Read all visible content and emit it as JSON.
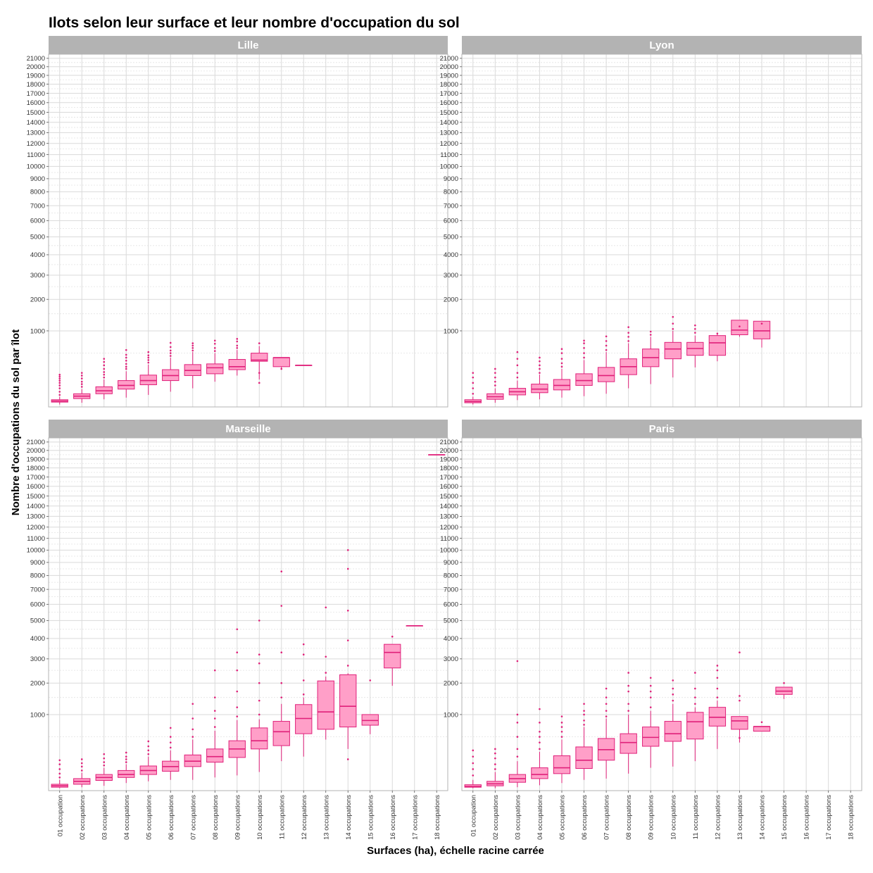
{
  "chart_data": {
    "type": "boxplot",
    "title": "Ilots selon leur surface et leur nombre d'occupation du sol",
    "xlabel": "Surfaces (ha), échelle racine carrée",
    "ylabel": "Nombre d'occupations du sol par îlot",
    "y_scale": "sqrt",
    "ylim": [
      0,
      21500
    ],
    "y_ticks": [
      1000,
      2000,
      3000,
      4000,
      5000,
      6000,
      7000,
      8000,
      9000,
      10000,
      11000,
      12000,
      13000,
      14000,
      15000,
      16000,
      17000,
      18000,
      19000,
      20000,
      21000
    ],
    "grid": true,
    "categories": [
      "01 occupation",
      "02 occupations",
      "03 occupations",
      "04 occupations",
      "05 occupations",
      "06 occupations",
      "07 occupations",
      "08 occupations",
      "09 occupations",
      "10 occupations",
      "11 occupations",
      "12 occupations",
      "13 occupations",
      "14 occupations",
      "15 occupations",
      "16 occupations",
      "17 occupations",
      "18 occupations"
    ],
    "box_fill": "#ff9fc8",
    "box_stroke": "#e0207a",
    "facets": [
      {
        "name": "Lille",
        "boxes": [
          {
            "cat": 0,
            "q1": 4,
            "med": 6,
            "q3": 9,
            "wlo": 1,
            "whi": 18,
            "outliers": [
              25,
              40,
              60,
              80,
              100,
              120,
              140,
              160,
              180
            ]
          },
          {
            "cat": 1,
            "q1": 12,
            "med": 20,
            "q3": 30,
            "wlo": 3,
            "whi": 55,
            "outliers": [
              70,
              90,
              110,
              140,
              170,
              200
            ]
          },
          {
            "cat": 2,
            "q1": 30,
            "med": 45,
            "q3": 70,
            "wlo": 10,
            "whi": 130,
            "outliers": [
              150,
              180,
              210,
              250,
              300,
              350,
              400
            ]
          },
          {
            "cat": 3,
            "q1": 55,
            "med": 80,
            "q3": 120,
            "wlo": 15,
            "whi": 220,
            "outliers": [
              250,
              280,
              320,
              370,
              420,
              470,
              560
            ]
          },
          {
            "cat": 4,
            "q1": 85,
            "med": 120,
            "q3": 175,
            "wlo": 25,
            "whi": 310,
            "outliers": [
              340,
              380,
              420,
              460,
              520
            ]
          },
          {
            "cat": 5,
            "q1": 120,
            "med": 170,
            "q3": 240,
            "wlo": 40,
            "whi": 420,
            "outliers": [
              450,
              500,
              550,
              620,
              710
            ]
          },
          {
            "cat": 6,
            "q1": 170,
            "med": 230,
            "q3": 310,
            "wlo": 60,
            "whi": 520,
            "outliers": [
              550,
              600,
              650,
              700
            ]
          },
          {
            "cat": 7,
            "q1": 190,
            "med": 265,
            "q3": 320,
            "wlo": 110,
            "whi": 500,
            "outliers": [
              540,
              600,
              690,
              760
            ]
          },
          {
            "cat": 8,
            "q1": 240,
            "med": 280,
            "q3": 390,
            "wlo": 170,
            "whi": 560,
            "outliers": [
              600,
              650,
              740,
              800
            ]
          },
          {
            "cat": 9,
            "q1": 360,
            "med": 380,
            "q3": 500,
            "wlo": 130,
            "whi": 640,
            "outliers": [
              100,
              200,
              700
            ]
          },
          {
            "cat": 10,
            "q1": 280,
            "med": 420,
            "q3": 420,
            "wlo": 240,
            "whi": 420,
            "outliers": [
              250
            ]
          },
          {
            "cat": 11,
            "q1": 300,
            "med": 300,
            "q3": 300,
            "wlo": 300,
            "whi": 300,
            "outliers": []
          }
        ]
      },
      {
        "name": "Lyon",
        "boxes": [
          {
            "cat": 0,
            "q1": 3,
            "med": 5,
            "q3": 9,
            "wlo": 1,
            "whi": 18,
            "outliers": [
              30,
              60,
              100,
              150,
              200
            ]
          },
          {
            "cat": 1,
            "q1": 10,
            "med": 18,
            "q3": 30,
            "wlo": 3,
            "whi": 60,
            "outliers": [
              80,
              110,
              150,
              200,
              250
            ]
          },
          {
            "cat": 2,
            "q1": 25,
            "med": 40,
            "q3": 60,
            "wlo": 8,
            "whi": 120,
            "outliers": [
              150,
              200,
              300,
              400,
              520
            ]
          },
          {
            "cat": 3,
            "q1": 35,
            "med": 55,
            "q3": 90,
            "wlo": 10,
            "whi": 180,
            "outliers": [
              200,
              250,
              300,
              360,
              420
            ]
          },
          {
            "cat": 4,
            "q1": 50,
            "med": 80,
            "q3": 130,
            "wlo": 15,
            "whi": 250,
            "outliers": [
              280,
              330,
              400,
              500,
              580
            ]
          },
          {
            "cat": 5,
            "q1": 80,
            "med": 120,
            "q3": 190,
            "wlo": 20,
            "whi": 380,
            "outliers": [
              420,
              500,
              600,
              700,
              760
            ]
          },
          {
            "cat": 6,
            "q1": 110,
            "med": 170,
            "q3": 270,
            "wlo": 30,
            "whi": 520,
            "outliers": [
              560,
              650,
              750,
              860
            ]
          },
          {
            "cat": 7,
            "q1": 180,
            "med": 280,
            "q3": 400,
            "wlo": 60,
            "whi": 700,
            "outliers": [
              750,
              850,
              950,
              1100
            ]
          },
          {
            "cat": 8,
            "q1": 280,
            "med": 420,
            "q3": 580,
            "wlo": 90,
            "whi": 850,
            "outliers": [
              900,
              980
            ]
          },
          {
            "cat": 9,
            "q1": 400,
            "med": 580,
            "q3": 720,
            "wlo": 150,
            "whi": 1000,
            "outliers": [
              1050,
              1200,
              1400
            ]
          },
          {
            "cat": 10,
            "q1": 460,
            "med": 590,
            "q3": 720,
            "wlo": 270,
            "whi": 880,
            "outliers": [
              950,
              1050,
              1150
            ]
          },
          {
            "cat": 11,
            "q1": 460,
            "med": 710,
            "q3": 880,
            "wlo": 360,
            "whi": 910,
            "outliers": [
              930
            ]
          },
          {
            "cat": 12,
            "q1": 900,
            "med": 1020,
            "q3": 1300,
            "wlo": 850,
            "whi": 1080,
            "outliers": [
              1120
            ]
          },
          {
            "cat": 13,
            "q1": 800,
            "med": 1000,
            "q3": 1270,
            "wlo": 610,
            "whi": 1150,
            "outliers": [
              1200
            ]
          }
        ]
      },
      {
        "name": "Marseille",
        "boxes": [
          {
            "cat": 0,
            "q1": 2,
            "med": 4,
            "q3": 7,
            "wlo": 1,
            "whi": 20,
            "outliers": [
              30,
              50,
              80,
              120,
              160
            ]
          },
          {
            "cat": 1,
            "q1": 7,
            "med": 15,
            "q3": 25,
            "wlo": 2,
            "whi": 55,
            "outliers": [
              70,
              100,
              130,
              170
            ]
          },
          {
            "cat": 2,
            "q1": 18,
            "med": 30,
            "q3": 45,
            "wlo": 4,
            "whi": 90,
            "outliers": [
              110,
              140,
              180,
              230
            ]
          },
          {
            "cat": 3,
            "q1": 30,
            "med": 45,
            "q3": 70,
            "wlo": 10,
            "whi": 120,
            "outliers": [
              140,
              170,
              200,
              250
            ]
          },
          {
            "cat": 4,
            "q1": 45,
            "med": 70,
            "q3": 105,
            "wlo": 15,
            "whi": 200,
            "outliers": [
              230,
              280,
              340,
              420
            ]
          },
          {
            "cat": 5,
            "q1": 65,
            "med": 100,
            "q3": 150,
            "wlo": 20,
            "whi": 280,
            "outliers": [
              320,
              400,
              500,
              680
            ]
          },
          {
            "cat": 6,
            "q1": 100,
            "med": 150,
            "q3": 220,
            "wlo": 20,
            "whi": 450,
            "outliers": [
              500,
              650,
              900,
              1300
            ]
          },
          {
            "cat": 7,
            "q1": 140,
            "med": 200,
            "q3": 300,
            "wlo": 30,
            "whi": 620,
            "outliers": [
              700,
              900,
              1100,
              1500,
              2500
            ]
          },
          {
            "cat": 8,
            "q1": 190,
            "med": 300,
            "q3": 430,
            "wlo": 40,
            "whi": 860,
            "outliers": [
              950,
              1200,
              1700,
              2500,
              3300,
              4500
            ]
          },
          {
            "cat": 9,
            "q1": 300,
            "med": 430,
            "q3": 680,
            "wlo": 60,
            "whi": 880,
            "outliers": [
              1000,
              1400,
              2000,
              2800,
              3200,
              5000
            ]
          },
          {
            "cat": 10,
            "q1": 350,
            "med": 600,
            "q3": 830,
            "wlo": 150,
            "whi": 1300,
            "outliers": [
              1500,
              2000,
              3300,
              5900,
              8300
            ]
          },
          {
            "cat": 11,
            "q1": 560,
            "med": 900,
            "q3": 1280,
            "wlo": 200,
            "whi": 1500,
            "outliers": [
              1600,
              2100,
              3200,
              3700
            ]
          },
          {
            "cat": 12,
            "q1": 650,
            "med": 1070,
            "q3": 2080,
            "wlo": 450,
            "whi": 2250,
            "outliers": [
              2400,
              3100,
              5800
            ]
          },
          {
            "cat": 13,
            "q1": 700,
            "med": 1230,
            "q3": 2320,
            "wlo": 300,
            "whi": 2380,
            "outliers": [
              170,
              2700,
              3900,
              5600,
              8500,
              10000
            ]
          },
          {
            "cat": 14,
            "q1": 740,
            "med": 850,
            "q3": 1000,
            "wlo": 550,
            "whi": 1000,
            "outliers": [
              2100
            ]
          },
          {
            "cat": 15,
            "q1": 2600,
            "med": 3300,
            "q3": 3700,
            "wlo": 1900,
            "whi": 3700,
            "outliers": [
              4100
            ]
          },
          {
            "cat": 16,
            "q1": 4700,
            "med": 4700,
            "q3": 4700,
            "wlo": 4700,
            "whi": 4700,
            "outliers": []
          },
          {
            "cat": 17,
            "q1": 19500,
            "med": 19500,
            "q3": 19500,
            "wlo": 19500,
            "whi": 19500,
            "outliers": []
          }
        ]
      },
      {
        "name": "Paris",
        "boxes": [
          {
            "cat": 0,
            "q1": 2,
            "med": 3,
            "q3": 6,
            "wlo": 1,
            "whi": 20,
            "outliers": [
              40,
              80,
              130,
              200,
              280
            ]
          },
          {
            "cat": 1,
            "q1": 4,
            "med": 8,
            "q3": 15,
            "wlo": 1,
            "whi": 60,
            "outliers": [
              80,
              120,
              180,
              240,
              300
            ]
          },
          {
            "cat": 2,
            "q1": 12,
            "med": 25,
            "q3": 45,
            "wlo": 2,
            "whi": 150,
            "outliers": [
              200,
              300,
              500,
              800,
              1000,
              2900
            ]
          },
          {
            "cat": 3,
            "q1": 25,
            "med": 45,
            "q3": 90,
            "wlo": 5,
            "whi": 260,
            "outliers": [
              300,
              400,
              500,
              600,
              800,
              1150
            ]
          },
          {
            "cat": 4,
            "q1": 50,
            "med": 90,
            "q3": 210,
            "wlo": 10,
            "whi": 450,
            "outliers": [
              500,
              600,
              700,
              800,
              950
            ]
          },
          {
            "cat": 5,
            "q1": 85,
            "med": 160,
            "q3": 330,
            "wlo": 20,
            "whi": 700,
            "outliers": [
              750,
              850,
              1000,
              1100,
              1300
            ]
          },
          {
            "cat": 6,
            "q1": 160,
            "med": 290,
            "q3": 470,
            "wlo": 25,
            "whi": 900,
            "outliers": [
              950,
              1100,
              1300,
              1500,
              1800
            ]
          },
          {
            "cat": 7,
            "q1": 240,
            "med": 400,
            "q3": 560,
            "wlo": 50,
            "whi": 1000,
            "outliers": [
              1100,
              1300,
              1700,
              1900,
              2400
            ]
          },
          {
            "cat": 8,
            "q1": 340,
            "med": 490,
            "q3": 700,
            "wlo": 90,
            "whi": 1100,
            "outliers": [
              1200,
              1500,
              1700,
              1900,
              2200
            ]
          },
          {
            "cat": 9,
            "q1": 420,
            "med": 560,
            "q3": 830,
            "wlo": 100,
            "whi": 1300,
            "outliers": [
              1400,
              1600,
              1800,
              2100
            ]
          },
          {
            "cat": 10,
            "q1": 460,
            "med": 820,
            "q3": 1060,
            "wlo": 150,
            "whi": 1200,
            "outliers": [
              1300,
              1500,
              1800,
              2400
            ]
          },
          {
            "cat": 11,
            "q1": 720,
            "med": 930,
            "q3": 1200,
            "wlo": 300,
            "whi": 1400,
            "outliers": [
              1500,
              1800,
              2200,
              2500,
              2700
            ]
          },
          {
            "cat": 12,
            "q1": 650,
            "med": 840,
            "q3": 950,
            "wlo": 400,
            "whi": 950,
            "outliers": [
              480,
              1400,
              1550,
              3300
            ]
          },
          {
            "cat": 13,
            "q1": 610,
            "med": 710,
            "q3": 710,
            "wlo": 610,
            "whi": 710,
            "outliers": [
              810
            ]
          },
          {
            "cat": 14,
            "q1": 1600,
            "med": 1710,
            "q3": 1850,
            "wlo": 1450,
            "whi": 1850,
            "outliers": [
              2000
            ]
          }
        ]
      }
    ]
  }
}
